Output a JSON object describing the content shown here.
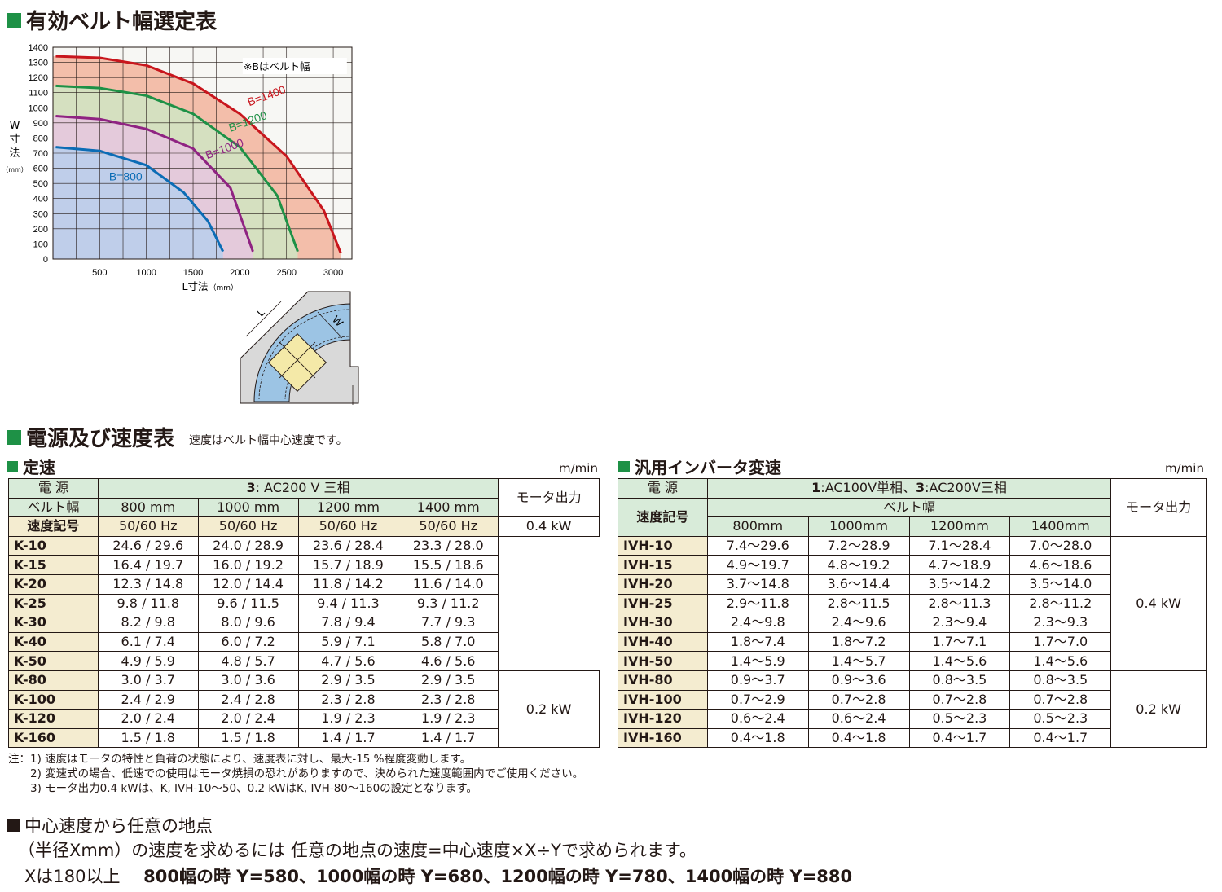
{
  "section1": {
    "title": "有効ベルト幅選定表"
  },
  "chart_data": {
    "type": "line",
    "title": "",
    "xlabel": "L寸法",
    "xlabel_unit": "（mm）",
    "ylabel": "W寸法",
    "ylabel_unit": "（mm）",
    "xlim": [
      0,
      3200
    ],
    "ylim": [
      0,
      1400
    ],
    "xticks": [
      500,
      1000,
      1500,
      2000,
      2500,
      3000
    ],
    "yticks": [
      0,
      100,
      200,
      300,
      400,
      500,
      600,
      700,
      800,
      900,
      1000,
      1100,
      1200,
      1300,
      1400
    ],
    "grid": true,
    "note": "※Bはベルト幅",
    "series": [
      {
        "name": "B=1400",
        "color": "#c8161d",
        "fill": "#f2b49c",
        "points": [
          [
            30,
            1340
          ],
          [
            500,
            1330
          ],
          [
            1000,
            1280
          ],
          [
            1500,
            1160
          ],
          [
            2000,
            960
          ],
          [
            2500,
            680
          ],
          [
            2900,
            320
          ],
          [
            3080,
            40
          ]
        ]
      },
      {
        "name": "B=1200",
        "color": "#1e9146",
        "fill": "#cfe6c4",
        "points": [
          [
            30,
            1145
          ],
          [
            500,
            1130
          ],
          [
            1000,
            1080
          ],
          [
            1500,
            960
          ],
          [
            2000,
            740
          ],
          [
            2400,
            420
          ],
          [
            2620,
            50
          ]
        ]
      },
      {
        "name": "B=1000",
        "color": "#8f2382",
        "fill": "#e6c6df",
        "points": [
          [
            30,
            945
          ],
          [
            500,
            925
          ],
          [
            1000,
            860
          ],
          [
            1500,
            730
          ],
          [
            1900,
            470
          ],
          [
            2140,
            50
          ]
        ]
      },
      {
        "name": "B=800",
        "color": "#0b6cb5",
        "fill": "#b9cfec",
        "points": [
          [
            30,
            740
          ],
          [
            500,
            715
          ],
          [
            1000,
            620
          ],
          [
            1400,
            440
          ],
          [
            1660,
            250
          ],
          [
            1820,
            50
          ]
        ]
      }
    ]
  },
  "diagram": {
    "label_l": "L",
    "label_w": "W"
  },
  "section2": {
    "title": "電源及び速度表",
    "subtitle": "速度はベルト幅中心速度です。"
  },
  "fixed": {
    "title": "定速",
    "unit": "m/min",
    "power_label": "電 源",
    "power_value_bold": "3",
    "power_value": ": AC200 V 三相",
    "belt_label": "ベルト幅",
    "belt_widths": [
      "800 mm",
      "1000 mm",
      "1200 mm",
      "1400 mm"
    ],
    "code_label": "速度記号",
    "freq": [
      "50/60 Hz",
      "50/60 Hz",
      "50/60 Hz",
      "50/60 Hz"
    ],
    "motor_label": "モータ出力",
    "motor_a": "0.4 kW",
    "motor_b": "0.2 kW",
    "rows": [
      [
        "K-10",
        "24.6 / 29.6",
        "24.0 / 28.9",
        "23.6 / 28.4",
        "23.3 / 28.0"
      ],
      [
        "K-15",
        "16.4 / 19.7",
        "16.0 / 19.2",
        "15.7 / 18.9",
        "15.5 / 18.6"
      ],
      [
        "K-20",
        "12.3 / 14.8",
        "12.0 / 14.4",
        "11.8 / 14.2",
        "11.6 / 14.0"
      ],
      [
        "K-25",
        "9.8 / 11.8",
        "9.6 / 11.5",
        "9.4 / 11.3",
        "9.3 / 11.2"
      ],
      [
        "K-30",
        "8.2 / 9.8",
        "8.0 / 9.6",
        "7.8 / 9.4",
        "7.7 / 9.3"
      ],
      [
        "K-40",
        "6.1 / 7.4",
        "6.0 / 7.2",
        "5.9 / 7.1",
        "5.8 / 7.0"
      ],
      [
        "K-50",
        "4.9 / 5.9",
        "4.8 / 5.7",
        "4.7 / 5.6",
        "4.6 / 5.6"
      ],
      [
        "K-80",
        "3.0 / 3.7",
        "3.0 / 3.6",
        "2.9 / 3.5",
        "2.9 / 3.5"
      ],
      [
        "K-100",
        "2.4 / 2.9",
        "2.4 / 2.8",
        "2.3 / 2.8",
        "2.3 / 2.8"
      ],
      [
        "K-120",
        "2.0 / 2.4",
        "2.0 / 2.4",
        "1.9 / 2.3",
        "1.9 / 2.3"
      ],
      [
        "K-160",
        "1.5 / 1.8",
        "1.5 / 1.8",
        "1.4 / 1.7",
        "1.4 / 1.7"
      ]
    ]
  },
  "inverter": {
    "title": "汎用インバータ変速",
    "unit": "m/min",
    "power_label": "電 源",
    "power_value_a_bold": "1",
    "power_value_a": ":AC100V単相、",
    "power_value_b_bold": "3",
    "power_value_b": ":AC200V三相",
    "code_label": "速度記号",
    "belt_label": "ベルト幅",
    "belt_widths": [
      "800mm",
      "1000mm",
      "1200mm",
      "1400mm"
    ],
    "motor_label": "モータ出力",
    "motor_a": "0.4 kW",
    "motor_b": "0.2 kW",
    "rows": [
      [
        "IVH-10",
        "7.4～29.6",
        "7.2～28.9",
        "7.1～28.4",
        "7.0～28.0"
      ],
      [
        "IVH-15",
        "4.9～19.7",
        "4.8～19.2",
        "4.7～18.9",
        "4.6～18.6"
      ],
      [
        "IVH-20",
        "3.7～14.8",
        "3.6～14.4",
        "3.5～14.2",
        "3.5～14.0"
      ],
      [
        "IVH-25",
        "2.9～11.8",
        "2.8～11.5",
        "2.8～11.3",
        "2.8～11.2"
      ],
      [
        "IVH-30",
        "2.4～9.8",
        "2.4～9.6",
        "2.3～9.4",
        "2.3～9.3"
      ],
      [
        "IVH-40",
        "1.8～7.4",
        "1.8～7.2",
        "1.7～7.1",
        "1.7～7.0"
      ],
      [
        "IVH-50",
        "1.4～5.9",
        "1.4～5.7",
        "1.4～5.6",
        "1.4～5.6"
      ],
      [
        "IVH-80",
        "0.9～3.7",
        "0.9～3.6",
        "0.8～3.5",
        "0.8～3.5"
      ],
      [
        "IVH-100",
        "0.7～2.9",
        "0.7～2.8",
        "0.7～2.8",
        "0.7～2.8"
      ],
      [
        "IVH-120",
        "0.6～2.4",
        "0.6～2.4",
        "0.5～2.3",
        "0.5～2.3"
      ],
      [
        "IVH-160",
        "0.4～1.8",
        "0.4～1.8",
        "0.4～1.7",
        "0.4～1.7"
      ]
    ]
  },
  "notes": [
    "注：1) 速度はモータの特性と負荷の状態により、速度表に対し、最大-15 %程度変動します。",
    "　　2) 変速式の場合、低速での使用はモータ焼損の恐れがありますので、決められた速度範囲内でご使用ください。",
    "　　3) モータ出力0.4 kWは、K, IVH-10～50、0.2 kWはK, IVH-80～160の設定となります。"
  ],
  "section3": {
    "title": "中心速度から任意の地点",
    "line1": "（半径Xmm）の速度を求めるには 任意の地点の速度=中心速度×X÷Yで求められます。",
    "line2_a": "Xは180以上",
    "line2_b": "800幅の時 Y=580、1000幅の時 Y=680、1200幅の時 Y=780、1400幅の時 Y=880"
  }
}
